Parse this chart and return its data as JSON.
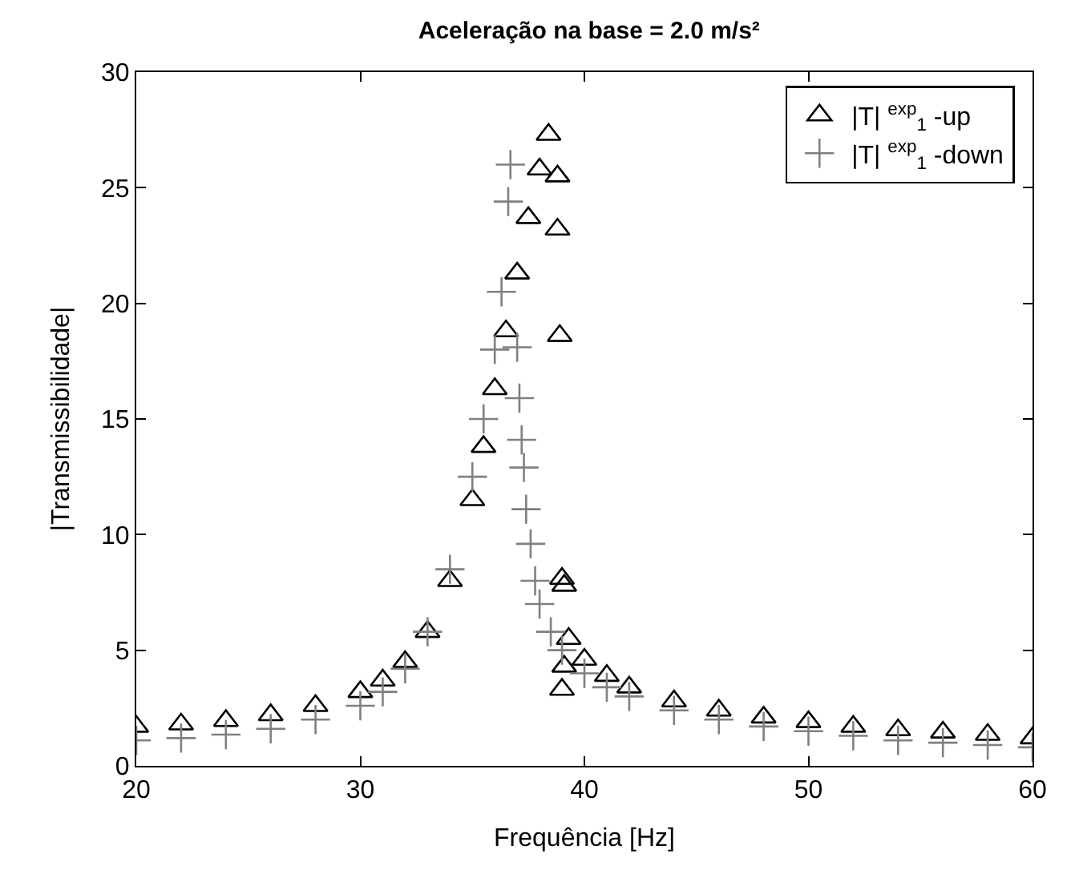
{
  "chart_data": {
    "type": "scatter",
    "title": "Aceleração na base = 2.0 m/s²",
    "xlabel": "Frequência [Hz]",
    "ylabel": "|Transmissibilidade|",
    "xlim": [
      20,
      60
    ],
    "xticks": [
      20,
      30,
      40,
      50,
      60
    ],
    "ylim": [
      0,
      30
    ],
    "yticks": [
      0,
      5,
      10,
      15,
      20,
      25,
      30
    ],
    "legend": "top right",
    "series": [
      {
        "name": "|T| $^{exp}$$_{1}$ -up",
        "color": "#000000",
        "marker": "triangle",
        "x": [
          20,
          22,
          24,
          26,
          28,
          30,
          31,
          32,
          33,
          34,
          35,
          35.5,
          36,
          36.5,
          37,
          37.5,
          38,
          38.4,
          38.8,
          38.8,
          38.9,
          39.0,
          39.1,
          39.1,
          39.0,
          39.3,
          40,
          41,
          42,
          44,
          46,
          48,
          50,
          52,
          54,
          56,
          58,
          60
        ],
        "values": [
          1.7,
          1.8,
          1.95,
          2.2,
          2.6,
          3.2,
          3.7,
          4.5,
          5.8,
          8.0,
          11.5,
          13.8,
          16.3,
          18.8,
          21.3,
          23.7,
          25.8,
          27.3,
          25.5,
          23.2,
          18.6,
          8.1,
          7.8,
          4.3,
          3.3,
          5.5,
          4.6,
          3.9,
          3.4,
          2.8,
          2.4,
          2.1,
          1.9,
          1.7,
          1.55,
          1.45,
          1.35,
          1.2
        ]
      },
      {
        "name": "|T| $^{exp}$$_{1}$ -down",
        "color": "#808080",
        "marker": "cross",
        "x": [
          20,
          22,
          24,
          26,
          28,
          30,
          31,
          32,
          33,
          34,
          35,
          35.5,
          36,
          36.3,
          36.6,
          36.7,
          37.0,
          37.1,
          37.2,
          37.3,
          37.4,
          37.6,
          37.8,
          38,
          38.5,
          39,
          40,
          41,
          42,
          44,
          46,
          48,
          50,
          52,
          54,
          56,
          58,
          60
        ],
        "values": [
          1.1,
          1.2,
          1.35,
          1.6,
          2.0,
          2.6,
          3.2,
          4.2,
          5.8,
          8.5,
          12.5,
          15.0,
          18.0,
          20.5,
          24.4,
          26.0,
          18.1,
          15.9,
          14.1,
          12.9,
          11.1,
          9.6,
          8.0,
          7.0,
          5.8,
          5.0,
          4.0,
          3.4,
          3.0,
          2.4,
          2.0,
          1.7,
          1.5,
          1.3,
          1.1,
          1.0,
          0.9,
          0.8
        ]
      }
    ]
  }
}
